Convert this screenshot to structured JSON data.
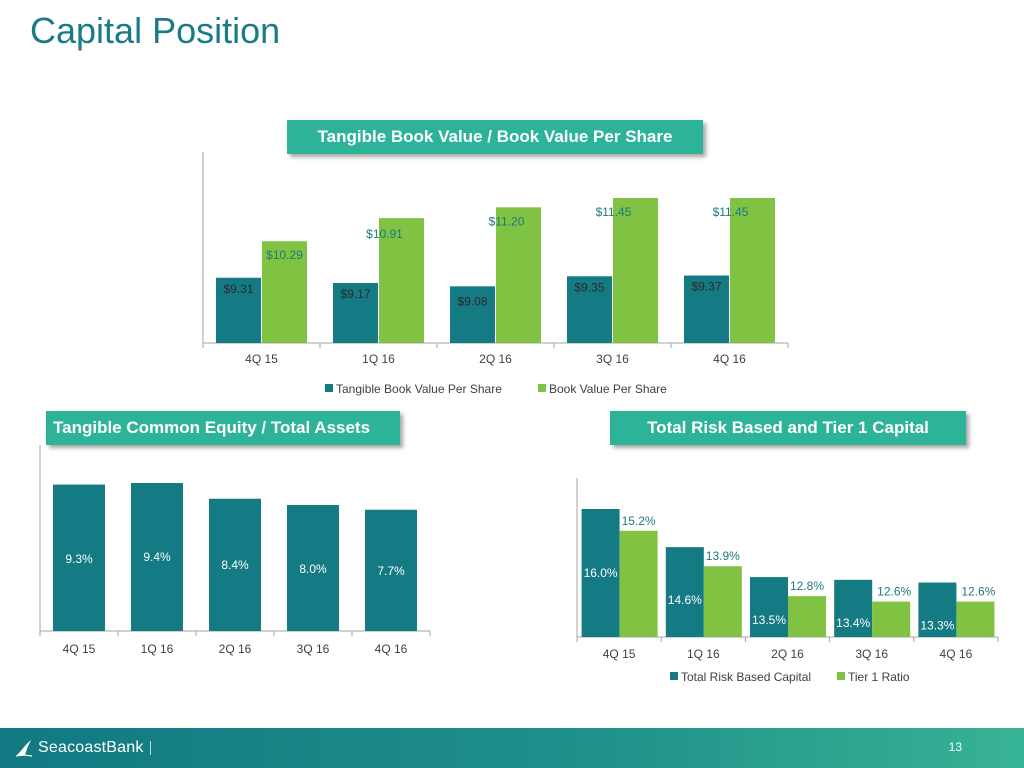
{
  "page": {
    "title": "Capital Position",
    "page_number": "13",
    "logo_text": "SeacoastBank"
  },
  "colors": {
    "dark_teal": "#147a83",
    "light_green": "#80c242",
    "banner": "#2db498",
    "title": "#1a7a85",
    "axis": "#a6a6a6",
    "label_text": "#404040",
    "value_text_green": "#1b7a7f"
  },
  "chart_data": [
    {
      "type": "bar",
      "title": "Tangible Book Value / Book Value Per Share",
      "categories": [
        "4Q 15",
        "1Q 16",
        "2Q 16",
        "3Q 16",
        "4Q 16"
      ],
      "series": [
        {
          "name": "Tangible Book Value Per Share",
          "values": [
            9.31,
            9.17,
            9.08,
            9.35,
            9.37
          ],
          "labels": [
            "$9.31",
            "$9.17",
            "$9.08",
            "$9.35",
            "$9.37"
          ]
        },
        {
          "name": "Book Value Per Share",
          "values": [
            10.29,
            10.91,
            11.2,
            11.45,
            11.45
          ],
          "labels": [
            "$10.29",
            "$10.91",
            "$11.20",
            "$11.45",
            "$11.45"
          ]
        }
      ],
      "legend": "bottom",
      "grid": false
    },
    {
      "type": "bar",
      "title": "Tangible Common Equity / Total Assets",
      "categories": [
        "4Q 15",
        "1Q 16",
        "2Q 16",
        "3Q 16",
        "4Q 16"
      ],
      "series": [
        {
          "values": [
            9.3,
            9.4,
            8.4,
            8.0,
            7.7
          ],
          "labels": [
            "9.3%",
            "9.4%",
            "8.4%",
            "8.0%",
            "7.7%"
          ]
        }
      ],
      "grid": false
    },
    {
      "type": "bar",
      "title": "Total Risk Based and Tier 1 Capital",
      "categories": [
        "4Q 15",
        "1Q 16",
        "2Q 16",
        "3Q 16",
        "4Q 16"
      ],
      "series": [
        {
          "name": "Total Risk Based Capital",
          "values": [
            16.0,
            14.6,
            13.5,
            13.4,
            13.3
          ],
          "labels": [
            "16.0%",
            "14.6%",
            "13.5%",
            "13.4%",
            "13.3%"
          ]
        },
        {
          "name": "Tier 1 Ratio",
          "values": [
            15.2,
            13.9,
            12.8,
            12.6,
            12.6
          ],
          "labels": [
            "15.2%",
            "13.9%",
            "12.8%",
            "12.6%",
            "12.6%"
          ]
        }
      ],
      "legend": "bottom",
      "grid": false
    }
  ]
}
